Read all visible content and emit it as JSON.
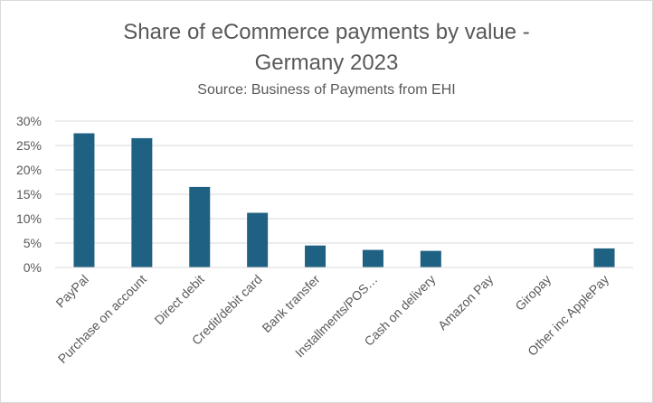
{
  "chart_data": {
    "type": "bar",
    "title_line1": "Share of eCommerce payments by value -",
    "title_line2": "Germany 2023",
    "subtitle": "Source: Business of Payments from EHI",
    "xlabel": "",
    "ylabel": "",
    "categories": [
      "PayPal",
      "Purchase on account",
      "Direct debit",
      "Credit/debit card",
      "Bank transfer",
      "Installments/POS…",
      "Cash on delivery",
      "Amazon Pay",
      "Giropay",
      "Other inc ApplePay"
    ],
    "values": [
      27.5,
      26.5,
      16.5,
      11.2,
      4.5,
      3.6,
      3.4,
      0,
      0,
      3.9
    ],
    "ylim": [
      0,
      30
    ],
    "yticks": [
      "0%",
      "5%",
      "10%",
      "15%",
      "20%",
      "25%",
      "30%"
    ],
    "grid": true,
    "legend": "none",
    "bar_color": "#1f6182",
    "grid_color": "#d9d9d9",
    "text_color": "#595959"
  }
}
